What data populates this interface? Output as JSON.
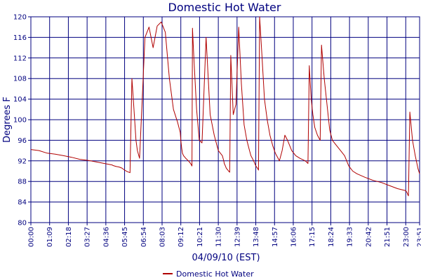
{
  "chart_data": {
    "type": "line",
    "title": "Domestic Hot Water",
    "xlabel": "04/09/10 (EST)",
    "ylabel": "Degrees F",
    "ylim": [
      80,
      120
    ],
    "yticks": [
      80,
      84,
      88,
      92,
      96,
      100,
      104,
      108,
      112,
      116,
      120
    ],
    "xlim": [
      "00:00",
      "23:51"
    ],
    "xticks": [
      "00:00",
      "01:09",
      "02:18",
      "03:27",
      "04:36",
      "05:45",
      "06:54",
      "08:03",
      "09:12",
      "10:21",
      "11:30",
      "12:39",
      "13:48",
      "14:57",
      "16:06",
      "17:15",
      "18:24",
      "19:33",
      "20:42",
      "21:51",
      "23:00",
      "23:51"
    ],
    "grid": true,
    "legend": {
      "position": "bottom-center"
    },
    "colors": {
      "series": "#b00000",
      "grid": "#00007f",
      "text": "#00007f"
    },
    "series": [
      {
        "name": "Domestic Hot Water",
        "x": [
          "00:00",
          "00:30",
          "01:00",
          "01:30",
          "02:00",
          "02:30",
          "03:00",
          "03:30",
          "04:00",
          "04:30",
          "05:00",
          "05:02",
          "05:08",
          "05:15",
          "05:25",
          "05:35",
          "05:45",
          "05:55",
          "06:05",
          "06:12",
          "06:17",
          "06:22",
          "06:27",
          "06:32",
          "06:40",
          "06:50",
          "07:00",
          "07:15",
          "07:30",
          "07:45",
          "08:00",
          "08:15",
          "08:30",
          "08:45",
          "09:00",
          "09:10",
          "09:12",
          "09:15",
          "09:18",
          "09:22",
          "09:30",
          "09:40",
          "09:48",
          "09:53",
          "09:55",
          "10:00",
          "10:10",
          "10:20",
          "10:30",
          "10:45",
          "11:00",
          "11:15",
          "11:30",
          "11:45",
          "11:50",
          "11:52",
          "11:56",
          "12:00",
          "12:04",
          "12:08",
          "12:12",
          "12:16",
          "12:25",
          "12:35",
          "12:45",
          "12:55",
          "13:05",
          "13:15",
          "13:25",
          "13:30",
          "13:40",
          "13:48",
          "13:55",
          "13:58",
          "14:02",
          "14:10",
          "14:20",
          "14:30",
          "14:40",
          "14:50",
          "15:00",
          "15:10",
          "15:15",
          "15:25",
          "15:35",
          "15:45",
          "16:00",
          "16:15",
          "16:30",
          "16:50",
          "17:00",
          "17:05",
          "17:12",
          "17:18",
          "17:25",
          "17:35",
          "17:45",
          "17:50",
          "18:00",
          "18:10",
          "18:20",
          "18:30",
          "18:45",
          "19:00",
          "19:15",
          "19:30",
          "19:45",
          "20:00",
          "20:30",
          "21:00",
          "21:30",
          "22:00",
          "22:30",
          "23:00",
          "23:05",
          "23:07",
          "23:10",
          "23:15",
          "23:25",
          "23:35",
          "23:45",
          "23:51"
        ],
        "values": [
          94.2,
          94.0,
          93.5,
          93.3,
          93.0,
          92.7,
          92.3,
          92.1,
          91.8,
          91.5,
          91.2,
          91.1,
          91.0,
          90.9,
          90.8,
          90.6,
          90.2,
          89.9,
          89.7,
          108.0,
          104.0,
          100.0,
          96.0,
          94.0,
          92.5,
          104.0,
          116.0,
          118.0,
          114.0,
          118.2,
          119.0,
          117.0,
          108.0,
          102.0,
          99.5,
          97.5,
          96.0,
          94.5,
          93.5,
          93.0,
          92.5,
          92.0,
          91.5,
          91.0,
          117.8,
          112.0,
          102.0,
          96.0,
          95.5,
          116.0,
          101.0,
          97.0,
          94.0,
          93.0,
          92.0,
          91.5,
          91.0,
          90.5,
          90.3,
          90.0,
          89.8,
          112.5,
          101.0,
          103.0,
          118.0,
          107.0,
          99.0,
          96.0,
          94.0,
          93.0,
          92.0,
          91.0,
          90.5,
          90.2,
          120.0,
          113.0,
          104.0,
          100.0,
          97.0,
          95.0,
          93.5,
          92.5,
          92.0,
          94.0,
          97.0,
          96.0,
          94.0,
          93.0,
          92.5,
          92.0,
          91.5,
          110.5,
          104.0,
          101.0,
          98.5,
          97.0,
          96.0,
          114.5,
          108.0,
          103.0,
          98.0,
          96.0,
          95.0,
          94.0,
          93.0,
          91.0,
          90.0,
          89.5,
          88.8,
          88.2,
          87.8,
          87.2,
          86.6,
          86.2,
          85.8,
          85.5,
          85.2,
          101.5,
          96.0,
          93.0,
          90.5,
          89.5
        ]
      }
    ]
  }
}
